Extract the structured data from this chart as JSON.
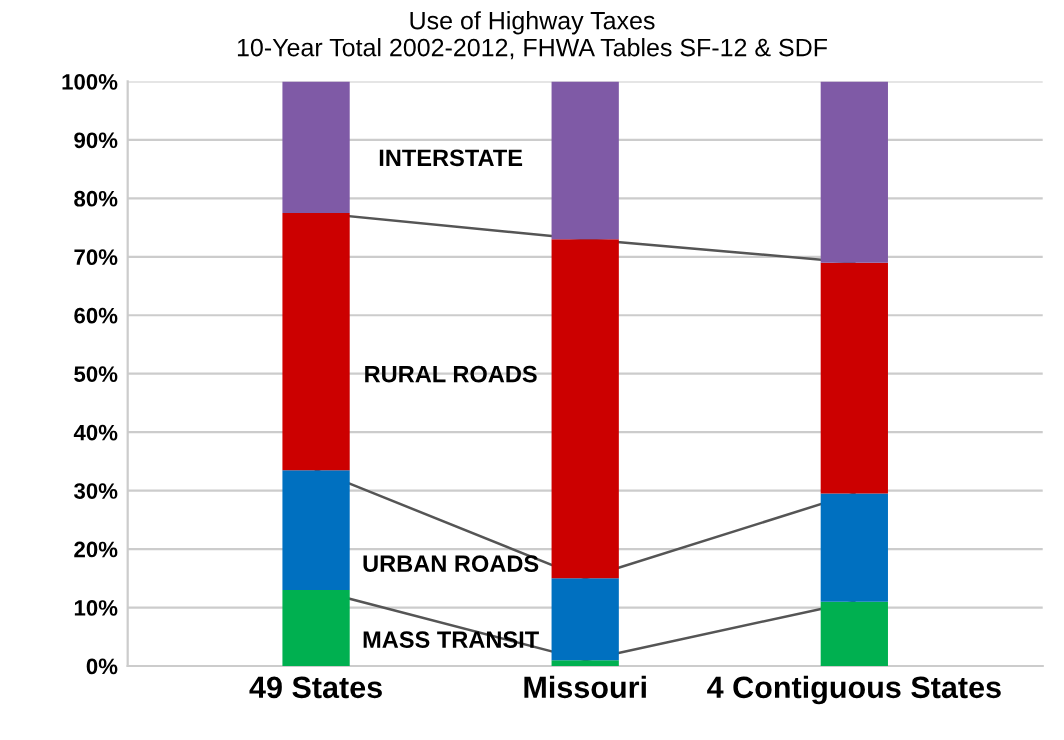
{
  "chart_data": {
    "type": "bar",
    "title": "Use of Highway Taxes\n10-Year Total 2002-2012, FHWA Tables SF-12 & SDF",
    "categories": [
      "49 States",
      "Missouri",
      "4 Contiguous States"
    ],
    "stacked": true,
    "series": [
      {
        "name": "MASS TRANSIT",
        "color": "#00b050",
        "values": [
          13,
          1,
          11
        ]
      },
      {
        "name": "URBAN ROADS",
        "color": "#0070c0",
        "values": [
          20.5,
          14,
          18.5
        ]
      },
      {
        "name": "RURAL ROADS",
        "color": "#cc0000",
        "values": [
          44,
          58,
          39.5
        ]
      },
      {
        "name": "INTERSTATE",
        "color": "#7f5aa6",
        "values": [
          22.5,
          27,
          31
        ]
      }
    ],
    "ylim": [
      0,
      100
    ],
    "yticks": [
      {
        "value": 0,
        "label": "0%"
      },
      {
        "value": 10,
        "label": "10%"
      },
      {
        "value": 20,
        "label": "20%"
      },
      {
        "value": 30,
        "label": "30%"
      },
      {
        "value": 40,
        "label": "40%"
      },
      {
        "value": 50,
        "label": "50%"
      },
      {
        "value": 60,
        "label": "60%"
      },
      {
        "value": 70,
        "label": "70%"
      },
      {
        "value": 80,
        "label": "80%"
      },
      {
        "value": 90,
        "label": "90%"
      },
      {
        "value": 100,
        "label": "100%"
      }
    ],
    "grid": "y",
    "legend": false
  }
}
